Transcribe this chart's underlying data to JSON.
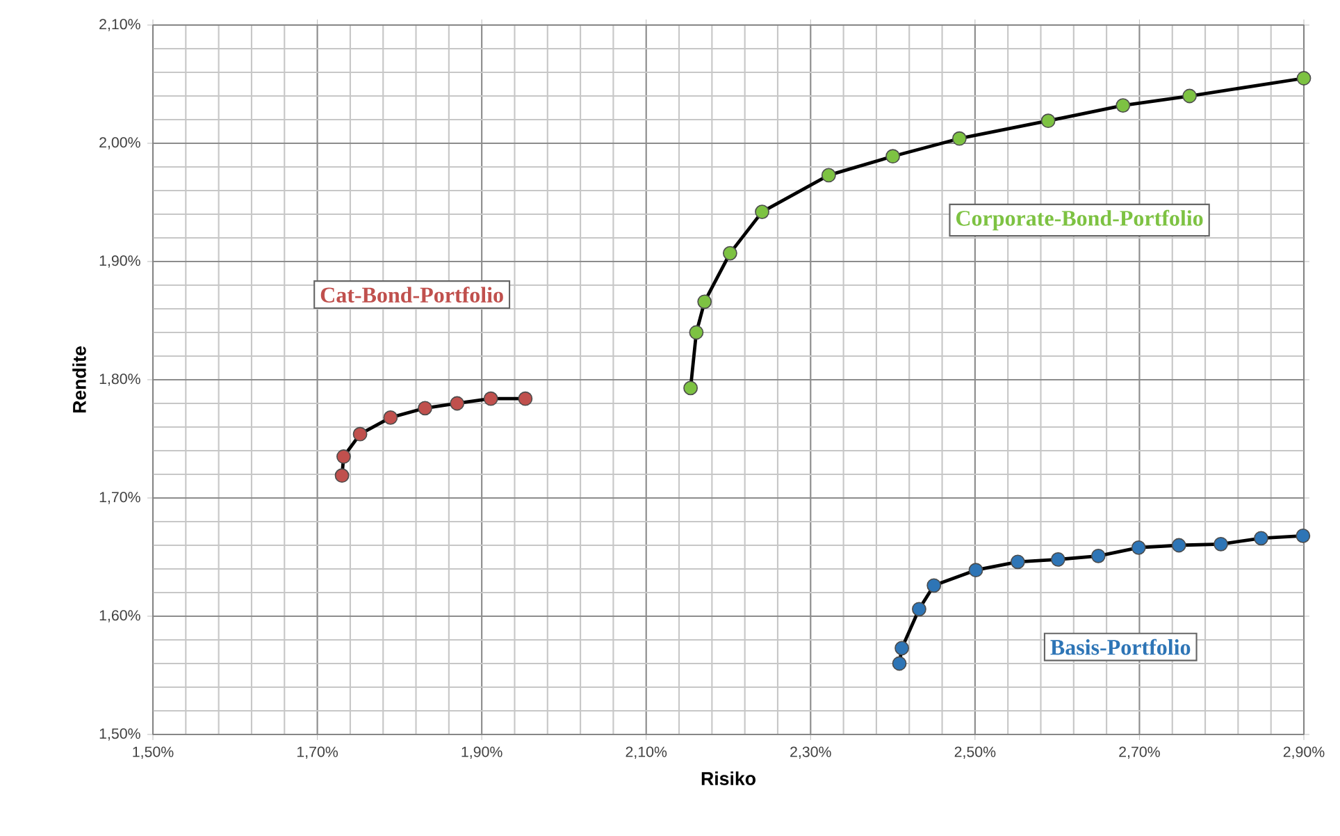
{
  "chart_data": {
    "type": "line",
    "xlabel": "Risiko",
    "ylabel": "Rendite",
    "xlim": [
      1.5,
      2.9
    ],
    "ylim": [
      1.5,
      2.1
    ],
    "xticks": [
      {
        "value": 1.5,
        "label": "1,50%"
      },
      {
        "value": 1.7,
        "label": "1,70%"
      },
      {
        "value": 1.9,
        "label": "1,90%"
      },
      {
        "value": 2.1,
        "label": "2,10%"
      },
      {
        "value": 2.3,
        "label": "2,30%"
      },
      {
        "value": 2.5,
        "label": "2,50%"
      },
      {
        "value": 2.7,
        "label": "2,70%"
      },
      {
        "value": 2.9,
        "label": "2,90%"
      }
    ],
    "yticks": [
      {
        "value": 1.5,
        "label": "1,50%"
      },
      {
        "value": 1.6,
        "label": "1,60%"
      },
      {
        "value": 1.7,
        "label": "1,70%"
      },
      {
        "value": 1.8,
        "label": "1,80%"
      },
      {
        "value": 1.9,
        "label": "1,90%"
      },
      {
        "value": 2.0,
        "label": "2,00%"
      },
      {
        "value": 2.1,
        "label": "2,10%"
      }
    ],
    "grid": true,
    "marker": "circle",
    "line_style": "solid",
    "series": [
      {
        "name": "Cat-Bond-Portfolio",
        "color": "#c0504d",
        "x": [
          1.73,
          1.732,
          1.752,
          1.789,
          1.831,
          1.87,
          1.911,
          1.953
        ],
        "values": [
          1.719,
          1.735,
          1.754,
          1.768,
          1.776,
          1.78,
          1.784,
          1.784
        ]
      },
      {
        "name": "Corporate-Bond-Portfolio",
        "color": "#7dc242",
        "x": [
          2.154,
          2.161,
          2.171,
          2.202,
          2.241,
          2.322,
          2.4,
          2.481,
          2.589,
          2.68,
          2.761,
          2.9
        ],
        "values": [
          1.793,
          1.84,
          1.866,
          1.907,
          1.942,
          1.973,
          1.989,
          2.004,
          2.019,
          2.032,
          2.04,
          2.055
        ]
      },
      {
        "name": "Basis-Portfolio",
        "color": "#2e75b6",
        "x": [
          2.408,
          2.411,
          2.432,
          2.45,
          2.501,
          2.552,
          2.601,
          2.65,
          2.699,
          2.748,
          2.799,
          2.848,
          2.899
        ],
        "values": [
          1.56,
          1.573,
          1.606,
          1.626,
          1.639,
          1.646,
          1.648,
          1.651,
          1.658,
          1.66,
          1.661,
          1.666,
          1.668
        ]
      }
    ]
  }
}
